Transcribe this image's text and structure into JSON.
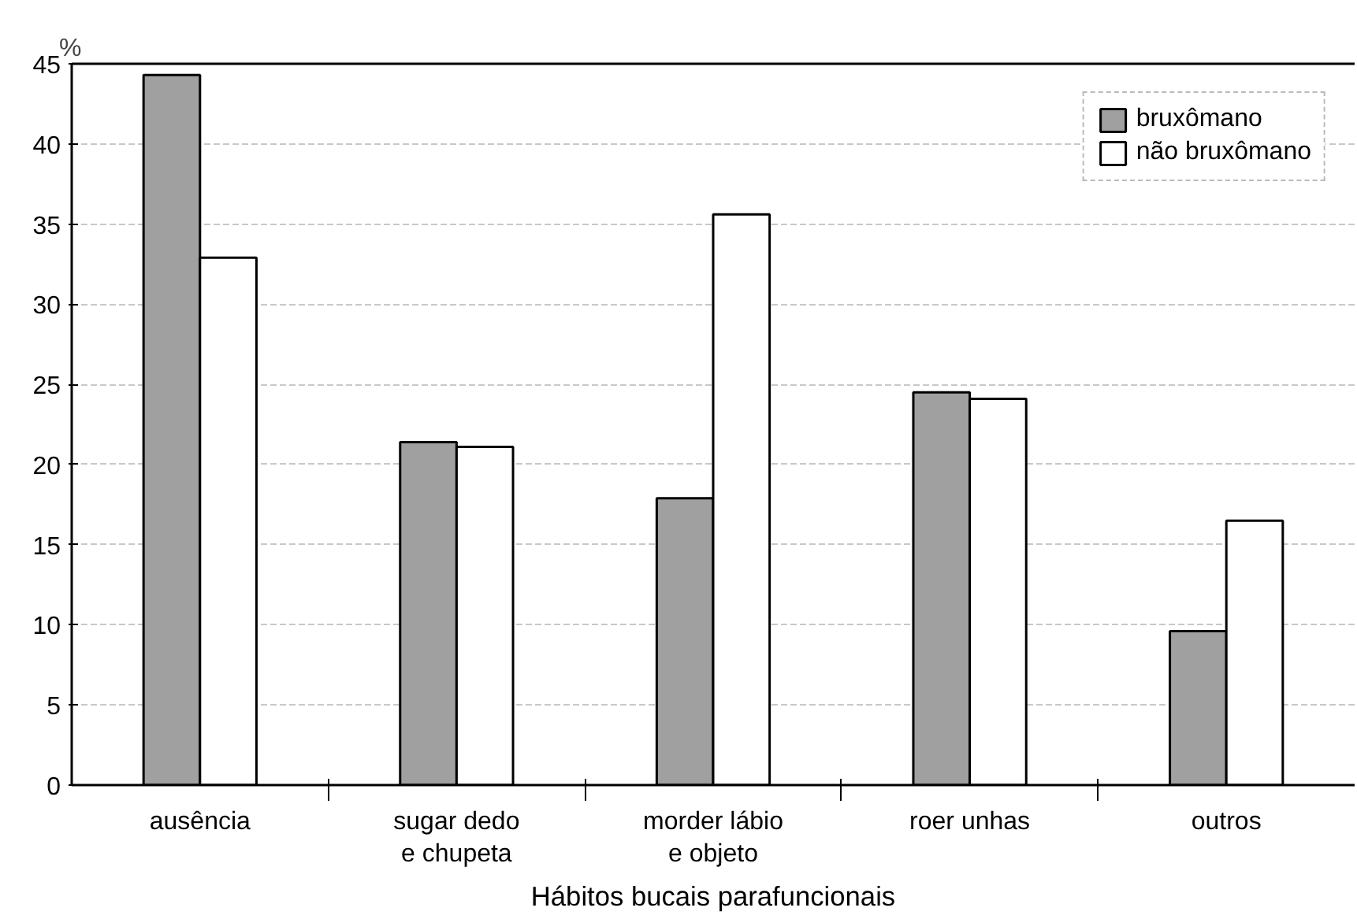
{
  "chart_data": {
    "type": "bar",
    "xlabel": "Hábitos bucais parafuncionais",
    "ylabel": "%",
    "categories": [
      "ausência",
      "sugar dedo\ne chupeta",
      "morder lábio\ne objeto",
      "roer unhas",
      "outros"
    ],
    "series": [
      {
        "name": "bruxômano",
        "color": "#a0a0a0",
        "values": [
          44.3,
          21.4,
          17.9,
          24.5,
          9.6
        ]
      },
      {
        "name": "não bruxômano",
        "color": "#ffffff",
        "values": [
          32.9,
          21.1,
          35.6,
          24.1,
          16.5
        ]
      }
    ],
    "ylim": [
      0,
      45
    ],
    "yticks": [
      0,
      5,
      10,
      15,
      20,
      25,
      30,
      35,
      40,
      45
    ],
    "grid": "y",
    "legend": "top right"
  }
}
